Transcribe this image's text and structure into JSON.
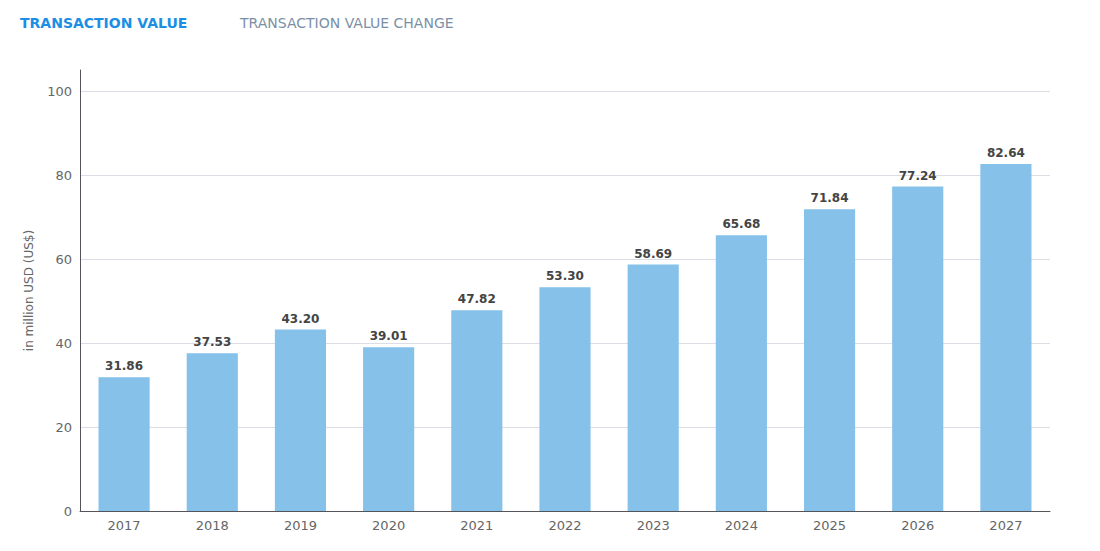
{
  "chart_data": {
    "type": "bar",
    "annotations": [
      {
        "text": "TRANSACTION VALUE",
        "color": "#1a8fe3"
      },
      {
        "text": "TRANSACTION VALUE CHANGE",
        "color": "#7a8fa6"
      }
    ],
    "ylabel": "in million USD (US$)",
    "categories": [
      "2017",
      "2018",
      "2019",
      "2020",
      "2021",
      "2022",
      "2023",
      "2024",
      "2025",
      "2026",
      "2027"
    ],
    "values": [
      31.86,
      37.53,
      43.2,
      39.01,
      47.82,
      53.3,
      58.69,
      65.68,
      71.84,
      77.24,
      82.64
    ],
    "value_labels": [
      "31.86",
      "37.53",
      "43.20",
      "39.01",
      "47.82",
      "53.30",
      "58.69",
      "65.68",
      "71.84",
      "77.24",
      "82.64"
    ],
    "data_labels": true,
    "color": "#85C1E9",
    "ylim": [
      0,
      105
    ],
    "yticks": [
      0,
      20,
      40,
      60,
      80,
      100
    ],
    "grid": true
  }
}
